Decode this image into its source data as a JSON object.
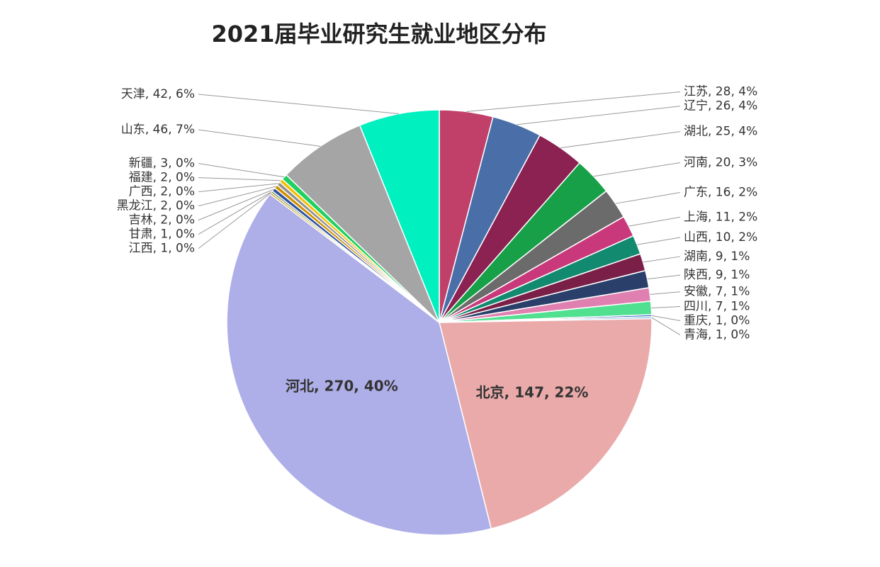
{
  "chart_data": {
    "type": "pie",
    "title": "2021届毕业研究生就业地区分布",
    "values": [
      28,
      26,
      25,
      20,
      16,
      11,
      10,
      9,
      9,
      7,
      7,
      1,
      1,
      147,
      270,
      1,
      1,
      2,
      2,
      2,
      2,
      3,
      46,
      42
    ],
    "value_labels": [
      "江苏, 28, 4%",
      "辽宁, 26, 4%",
      "湖北, 25, 4%",
      "河南, 20, 3%",
      "广东, 16, 2%",
      "上海, 11, 2%",
      "山西, 10, 2%",
      "湖南, 9, 1%",
      "陕西, 9, 1%",
      "安徽, 7, 1%",
      "四川, 7, 1%",
      "重庆, 1, 0%",
      "青海, 1, 0%",
      "北京, 147, 22%",
      "河北, 270, 40%",
      "江西, 1, 0%",
      "甘肃, 1, 0%",
      "吉林, 2, 0%",
      "黑龙江, 2, 0%",
      "广西, 2, 0%",
      "福建, 2, 0%",
      "新疆, 3, 0%",
      "山东, 46, 7%",
      "天津, 42, 6%"
    ],
    "colors": [
      "#c0406a",
      "#4a6fa8",
      "#8b2252",
      "#18a048",
      "#6b6b6b",
      "#c8387a",
      "#128a70",
      "#7a2048",
      "#2a3f6a",
      "#e080b0",
      "#50e090",
      "#3060c0",
      "#80c0e0",
      "#eaaaaa",
      "#aeaee8",
      "#c89000",
      "#4a8030",
      "#3050a0",
      "#d09000",
      "#909090",
      "#f0c000",
      "#20d060",
      "#a5a5a5",
      "#00f0c0"
    ]
  }
}
